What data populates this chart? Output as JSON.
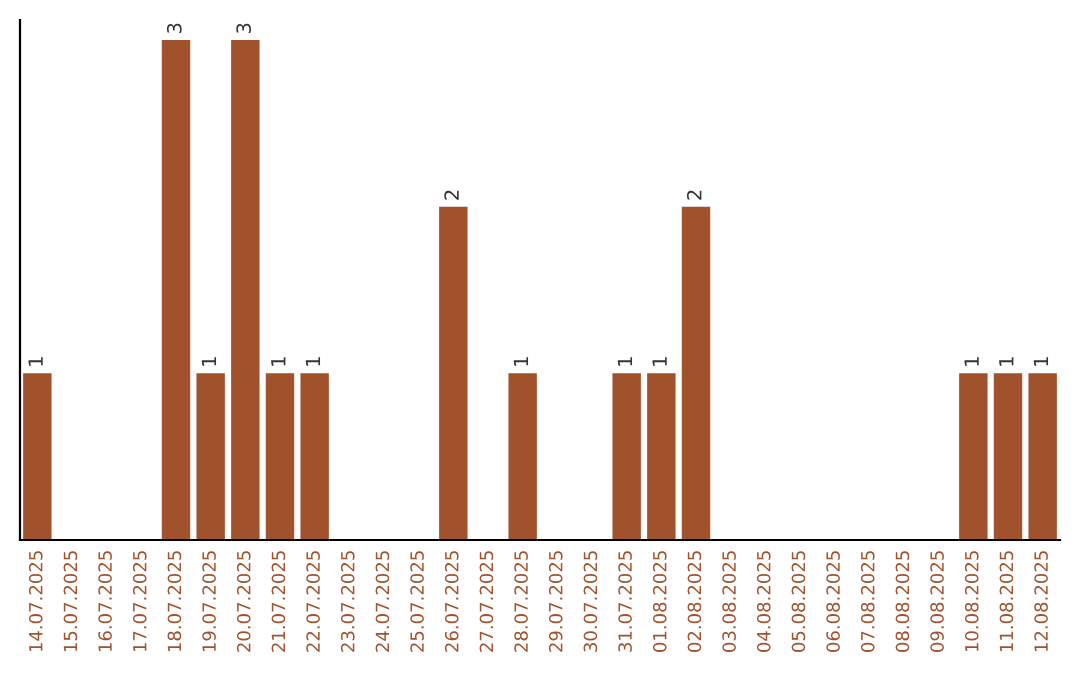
{
  "chart_data": {
    "type": "bar",
    "categories": [
      "14.07.2025",
      "15.07.2025",
      "16.07.2025",
      "17.07.2025",
      "18.07.2025",
      "19.07.2025",
      "20.07.2025",
      "21.07.2025",
      "22.07.2025",
      "23.07.2025",
      "24.07.2025",
      "25.07.2025",
      "26.07.2025",
      "27.07.2025",
      "28.07.2025",
      "29.07.2025",
      "30.07.2025",
      "31.07.2025",
      "01.08.2025",
      "02.08.2025",
      "03.08.2025",
      "04.08.2025",
      "05.08.2025",
      "06.08.2025",
      "07.08.2025",
      "08.08.2025",
      "09.08.2025",
      "10.08.2025",
      "11.08.2025",
      "12.08.2025"
    ],
    "values": [
      1,
      0,
      0,
      0,
      3,
      1,
      3,
      1,
      1,
      0,
      0,
      0,
      2,
      0,
      1,
      0,
      0,
      1,
      1,
      2,
      0,
      0,
      0,
      0,
      0,
      0,
      0,
      1,
      1,
      1
    ],
    "value_labels": [
      "1",
      null,
      null,
      null,
      "3",
      "1",
      "3",
      "1",
      "1",
      null,
      null,
      null,
      "2",
      null,
      "1",
      null,
      null,
      "1",
      "1",
      "2",
      null,
      null,
      null,
      null,
      null,
      null,
      null,
      "1",
      "1",
      "1"
    ],
    "color": "#a0522d",
    "tick_labels": "x",
    "grid": false,
    "legend": false
  }
}
